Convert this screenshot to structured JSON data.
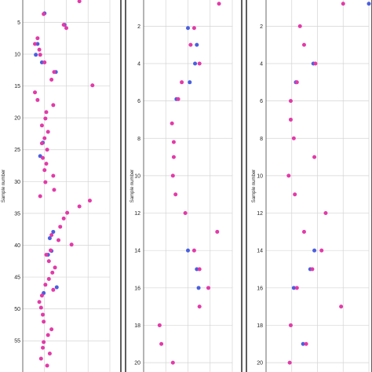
{
  "colors": {
    "blue": "#4a5fe0",
    "pink": "#e33aa8",
    "frame": "#1a1a1a",
    "grid": "#d4d4d4"
  },
  "chart_data": [
    {
      "type": "scatter",
      "ylabel": "Sample number",
      "yticks": [
        5,
        10,
        15,
        20,
        25,
        30,
        35,
        40,
        45,
        50,
        55
      ],
      "xlim": [
        0,
        1
      ],
      "ylim": [
        1.5,
        59.9
      ],
      "series": [
        {
          "values": [
            [
              0.25,
              3.6
            ],
            [
              0.48,
              5.4
            ],
            [
              0.17,
              8.4
            ],
            [
              0.15,
              10.1
            ],
            [
              0.22,
              11.3
            ],
            [
              0.38,
              12.8
            ],
            [
              0.23,
              23.9
            ],
            [
              0.2,
              26
            ],
            [
              0.35,
              37.9
            ],
            [
              0.31,
              38.9
            ],
            [
              0.33,
              40.9
            ],
            [
              0.39,
              46.6
            ],
            [
              0.24,
              47.5
            ],
            [
              0.29,
              41.5
            ]
          ]
        },
        {
          "values": [
            [
              0.63,
              0.3
            ],
            [
              0.65,
              1.7
            ],
            [
              0.24,
              3.7
            ],
            [
              0.47,
              5.4
            ],
            [
              0.5,
              5.9
            ],
            [
              0.17,
              7.5
            ],
            [
              0.14,
              8.4
            ],
            [
              0.19,
              9.3
            ],
            [
              0.2,
              10.1
            ],
            [
              0.25,
              11.3
            ],
            [
              0.36,
              12.8
            ],
            [
              0.33,
              14
            ],
            [
              0.8,
              14.9
            ],
            [
              0.14,
              16
            ],
            [
              0.17,
              17.2
            ],
            [
              0.35,
              18
            ],
            [
              0.27,
              19.1
            ],
            [
              0.26,
              20.1
            ],
            [
              0.22,
              21.2
            ],
            [
              0.29,
              22.2
            ],
            [
              0.25,
              23.2
            ],
            [
              0.22,
              24
            ],
            [
              0.28,
              25
            ],
            [
              0.23,
              26.3
            ],
            [
              0.27,
              27.2
            ],
            [
              0.25,
              28.2
            ],
            [
              0.35,
              29.1
            ],
            [
              0.26,
              30.1
            ],
            [
              0.36,
              31.3
            ],
            [
              0.2,
              32.3
            ],
            [
              0.77,
              33
            ],
            [
              0.65,
              33.9
            ],
            [
              0.51,
              34.9
            ],
            [
              0.47,
              35.8
            ],
            [
              0.43,
              37.1
            ],
            [
              0.33,
              38.4
            ],
            [
              0.41,
              39.2
            ],
            [
              0.56,
              39.9
            ],
            [
              0.32,
              40.8
            ],
            [
              0.27,
              41.5
            ],
            [
              0.3,
              42.5
            ],
            [
              0.37,
              43.5
            ],
            [
              0.34,
              44.3
            ],
            [
              0.3,
              45.3
            ],
            [
              0.26,
              46.2
            ],
            [
              0.35,
              47
            ],
            [
              0.22,
              47.9
            ],
            [
              0.19,
              48.9
            ],
            [
              0.21,
              49.8
            ],
            [
              0.23,
              50.9
            ],
            [
              0.24,
              52
            ],
            [
              0.33,
              53.2
            ],
            [
              0.29,
              54.1
            ],
            [
              0.24,
              55.2
            ],
            [
              0.23,
              56.1
            ],
            [
              0.31,
              57
            ],
            [
              0.21,
              57.8
            ],
            [
              0.28,
              58.9
            ]
          ]
        }
      ]
    },
    {
      "type": "scatter",
      "ylabel": "Sample number",
      "yticks": [
        2,
        4,
        6,
        8,
        10,
        12,
        14,
        16,
        18,
        20
      ],
      "xlim": [
        0,
        1
      ],
      "ylim": [
        0.6,
        20.5
      ],
      "series": [
        {
          "values": [
            [
              0.5,
              2.1
            ],
            [
              0.6,
              3
            ],
            [
              0.58,
              4
            ],
            [
              0.52,
              5
            ],
            [
              0.37,
              5.9
            ],
            [
              0.5,
              14
            ],
            [
              0.6,
              15
            ],
            [
              0.62,
              16
            ]
          ]
        },
        {
          "values": [
            [
              0.85,
              0.8
            ],
            [
              0.57,
              2.1
            ],
            [
              0.53,
              3
            ],
            [
              0.63,
              4
            ],
            [
              0.43,
              5
            ],
            [
              0.39,
              5.9
            ],
            [
              0.32,
              7.2
            ],
            [
              0.34,
              8.2
            ],
            [
              0.34,
              9
            ],
            [
              0.33,
              10
            ],
            [
              0.36,
              11
            ],
            [
              0.47,
              12
            ],
            [
              0.83,
              13
            ],
            [
              0.57,
              14
            ],
            [
              0.63,
              15
            ],
            [
              0.73,
              16
            ],
            [
              0.63,
              17
            ],
            [
              0.18,
              18
            ],
            [
              0.2,
              19
            ],
            [
              0.33,
              20
            ]
          ]
        }
      ]
    },
    {
      "type": "scatter",
      "ylabel": "Sample number",
      "yticks": [
        2,
        4,
        6,
        8,
        10,
        12,
        14,
        16,
        18,
        20
      ],
      "xlim": [
        0,
        1
      ],
      "ylim": [
        0.6,
        20.5
      ],
      "series": [
        {
          "values": [
            [
              1.0,
              0.8
            ],
            [
              0.46,
              4
            ],
            [
              0.29,
              5
            ],
            [
              0.47,
              14
            ],
            [
              0.43,
              15
            ],
            [
              0.27,
              16
            ],
            [
              0.36,
              19
            ]
          ]
        },
        {
          "values": [
            [
              0.75,
              0.8
            ],
            [
              0.33,
              2
            ],
            [
              0.37,
              3
            ],
            [
              0.48,
              4
            ],
            [
              0.3,
              5
            ],
            [
              0.24,
              6
            ],
            [
              0.24,
              7
            ],
            [
              0.27,
              8
            ],
            [
              0.47,
              9
            ],
            [
              0.22,
              10
            ],
            [
              0.28,
              11
            ],
            [
              0.58,
              12
            ],
            [
              0.37,
              13
            ],
            [
              0.54,
              14
            ],
            [
              0.45,
              15
            ],
            [
              0.3,
              16
            ],
            [
              0.73,
              17
            ],
            [
              0.24,
              18
            ],
            [
              0.39,
              19
            ],
            [
              0.23,
              20
            ]
          ]
        }
      ]
    }
  ]
}
